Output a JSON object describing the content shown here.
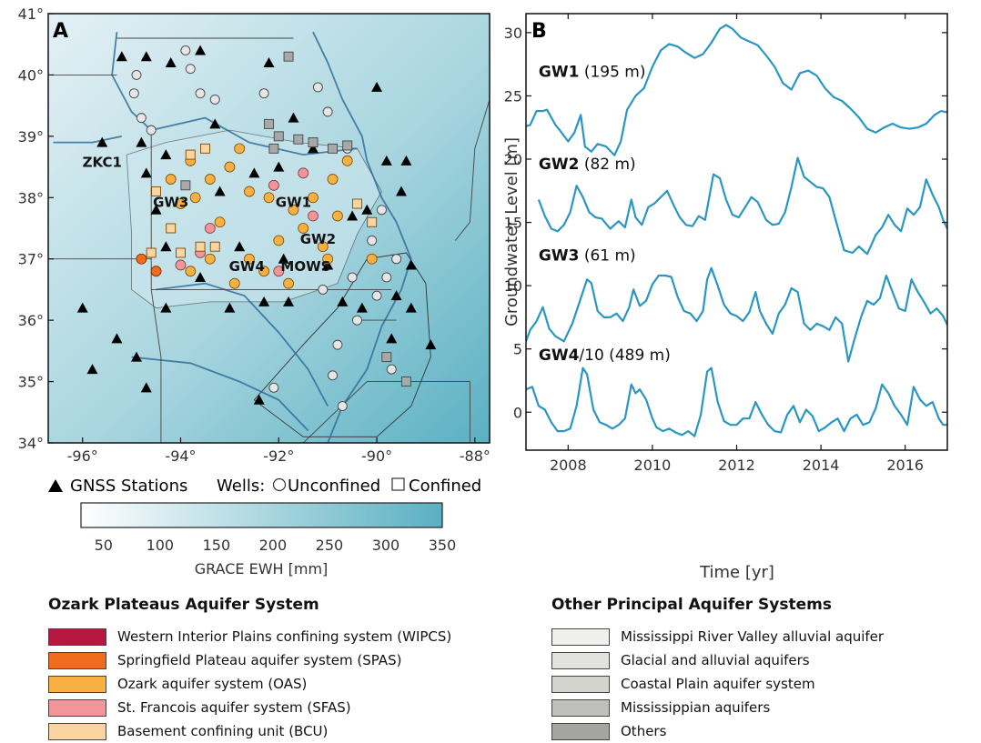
{
  "panel_a": {
    "label": "A",
    "lon_ticks": [
      "-96°",
      "-94°",
      "-92°",
      "-90°",
      "-88°"
    ],
    "lat_ticks": [
      "41°",
      "40°",
      "39°",
      "38°",
      "37°",
      "36°",
      "35°",
      "34°"
    ],
    "station_labels": [
      {
        "text": "ZKC1",
        "lon": -95.6,
        "lat": 38.5
      },
      {
        "text": "GW3",
        "lon": -94.2,
        "lat": 37.85
      },
      {
        "text": "GW1",
        "lon": -91.7,
        "lat": 37.85
      },
      {
        "text": "GW2",
        "lon": -91.2,
        "lat": 37.25
      },
      {
        "text": "GW4",
        "lon": -92.65,
        "lat": 36.8
      },
      {
        "text": "MOWS",
        "lon": -91.45,
        "lat": 36.8
      }
    ],
    "gnss_legend": "GNSS Stations",
    "wells_legend": "Wells:",
    "unconfined_label": "Unconfined",
    "confined_label": "Confined",
    "colorbar_label": "GRACE EWH [mm]",
    "colorbar_ticks": [
      "50",
      "100",
      "150",
      "200",
      "250",
      "300",
      "350"
    ],
    "colors": {
      "ocean_low": "#e4f1f5",
      "ocean_high": "#5ab0c2",
      "wipcs": "#b5173f",
      "spas": "#f26b1d",
      "oas": "#f7b041",
      "sfas": "#f2959a",
      "bcu": "#fbd5a1",
      "unconfined_fill": "#e6e6e6",
      "confined_fill": "#a8a8a8"
    }
  },
  "ozark_legend": {
    "title": "Ozark Plateaus Aquifer System",
    "items": [
      {
        "label": "Western Interior Plains confining system (WIPCS)",
        "color": "#b5173f"
      },
      {
        "label": "Springfield Plateau aquifer system (SPAS)",
        "color": "#f26b1d"
      },
      {
        "label": "Ozark aquifer system (OAS)",
        "color": "#f7b041"
      },
      {
        "label": "St. Francois aquifer system (SFAS)",
        "color": "#f2959a"
      },
      {
        "label": "Basement confining unit (BCU)",
        "color": "#fbd5a1"
      }
    ]
  },
  "other_legend": {
    "title": "Other Principal Aquifer Systems",
    "items": [
      {
        "label": "Mississippi River Valley alluvial aquifer",
        "color": "#efefec"
      },
      {
        "label": "Glacial and alluvial aquifers",
        "color": "#e2e2df"
      },
      {
        "label": "Coastal Plain aquifer system",
        "color": "#d3d3d0"
      },
      {
        "label": "Mississippian aquifers",
        "color": "#bfbfbc"
      },
      {
        "label": "Others",
        "color": "#a4a4a1"
      }
    ]
  },
  "chart_data": {
    "type": "line",
    "panel_label": "B",
    "xlabel": "Time [yr]",
    "ylabel": "Groundwater Level [m]",
    "xlim": [
      2007.0,
      2017.0
    ],
    "ylim": [
      -3,
      31.5
    ],
    "xticks": [
      2008,
      2010,
      2012,
      2014,
      2016
    ],
    "yticks": [
      0,
      5,
      10,
      15,
      20,
      25,
      30
    ],
    "grid": false,
    "line_color": "#2a97c2",
    "series": [
      {
        "name": "GW1",
        "depth": "(195 m)",
        "label_x": 2007.3,
        "label_y": 26.5,
        "x": [
          2007.0,
          2007.1,
          2007.25,
          2007.4,
          2007.5,
          2007.7,
          2007.8,
          2008.0,
          2008.15,
          2008.3,
          2008.4,
          2008.55,
          2008.7,
          2008.9,
          2009.1,
          2009.25,
          2009.4,
          2009.6,
          2009.8,
          2010.0,
          2010.2,
          2010.4,
          2010.6,
          2010.8,
          2011.0,
          2011.2,
          2011.4,
          2011.6,
          2011.75,
          2011.9,
          2012.1,
          2012.3,
          2012.5,
          2012.7,
          2012.9,
          2013.1,
          2013.3,
          2013.5,
          2013.7,
          2013.9,
          2014.1,
          2014.3,
          2014.5,
          2014.7,
          2014.9,
          2015.1,
          2015.3,
          2015.5,
          2015.7,
          2015.9,
          2016.1,
          2016.3,
          2016.5,
          2016.7,
          2016.85,
          2017.0
        ],
        "y": [
          22.6,
          22.7,
          23.8,
          23.8,
          23.9,
          22.7,
          22.3,
          21.4,
          22.1,
          23.5,
          21.0,
          20.6,
          21.2,
          21.0,
          20.3,
          21.4,
          23.9,
          25.0,
          25.6,
          27.3,
          28.6,
          29.1,
          28.9,
          28.4,
          28.0,
          28.3,
          29.2,
          30.3,
          30.6,
          30.3,
          29.6,
          29.3,
          29.0,
          28.2,
          27.3,
          26.0,
          25.5,
          26.8,
          27.0,
          26.6,
          25.6,
          24.9,
          24.6,
          24.0,
          23.3,
          22.4,
          22.1,
          22.5,
          22.8,
          22.5,
          22.4,
          22.5,
          22.8,
          23.5,
          23.8,
          23.7
        ]
      },
      {
        "name": "GW2",
        "depth": "(82 m)",
        "label_x": 2007.3,
        "label_y": 19.2,
        "x": [
          2007.3,
          2007.45,
          2007.6,
          2007.75,
          2007.9,
          2008.05,
          2008.2,
          2008.35,
          2008.5,
          2008.65,
          2008.8,
          2009.0,
          2009.2,
          2009.35,
          2009.5,
          2009.6,
          2009.75,
          2009.9,
          2010.05,
          2010.2,
          2010.35,
          2010.5,
          2010.65,
          2010.8,
          2010.95,
          2011.1,
          2011.25,
          2011.45,
          2011.6,
          2011.75,
          2011.9,
          2012.05,
          2012.2,
          2012.35,
          2012.5,
          2012.7,
          2012.85,
          2013.0,
          2013.15,
          2013.3,
          2013.45,
          2013.6,
          2013.75,
          2013.9,
          2014.05,
          2014.2,
          2014.35,
          2014.55,
          2014.75,
          2014.9,
          2015.1,
          2015.3,
          2015.45,
          2015.6,
          2015.75,
          2015.9,
          2016.05,
          2016.2,
          2016.35,
          2016.5,
          2016.65,
          2016.8,
          2016.9,
          2017.0
        ],
        "y": [
          16.8,
          15.5,
          14.5,
          14.3,
          14.8,
          15.8,
          17.9,
          17.0,
          15.8,
          15.4,
          15.3,
          14.5,
          15.1,
          14.6,
          16.8,
          15.4,
          14.8,
          16.2,
          16.5,
          17.0,
          17.5,
          16.4,
          15.4,
          14.8,
          14.7,
          15.5,
          15.2,
          18.8,
          18.5,
          16.8,
          15.6,
          15.4,
          16.2,
          17.0,
          16.6,
          15.2,
          14.8,
          14.9,
          15.8,
          17.8,
          20.1,
          18.6,
          18.2,
          17.8,
          17.7,
          17.0,
          15.2,
          12.8,
          12.6,
          13.1,
          12.5,
          14.0,
          14.6,
          15.6,
          14.8,
          14.3,
          16.1,
          15.6,
          16.2,
          18.4,
          17.2,
          16.2,
          15.2,
          14.5
        ]
      },
      {
        "name": "GW3",
        "depth": "(61 m)",
        "label_x": 2007.3,
        "label_y": 12.0,
        "x": [
          2007.0,
          2007.1,
          2007.25,
          2007.4,
          2007.55,
          2007.7,
          2007.9,
          2008.1,
          2008.3,
          2008.45,
          2008.55,
          2008.7,
          2008.85,
          2009.0,
          2009.15,
          2009.3,
          2009.45,
          2009.55,
          2009.7,
          2009.85,
          2010.0,
          2010.15,
          2010.3,
          2010.45,
          2010.6,
          2010.75,
          2010.9,
          2011.05,
          2011.2,
          2011.3,
          2011.4,
          2011.55,
          2011.7,
          2011.85,
          2012.0,
          2012.15,
          2012.3,
          2012.45,
          2012.55,
          2012.7,
          2012.85,
          2013.0,
          2013.15,
          2013.3,
          2013.45,
          2013.6,
          2013.75,
          2013.9,
          2014.05,
          2014.2,
          2014.35,
          2014.5,
          2014.65,
          2014.8,
          2014.95,
          2015.1,
          2015.25,
          2015.4,
          2015.55,
          2015.7,
          2015.85,
          2016.0,
          2016.15,
          2016.3,
          2016.45,
          2016.6,
          2016.75,
          2016.9,
          2017.0
        ],
        "y": [
          5.6,
          6.5,
          7.2,
          8.3,
          6.6,
          6.0,
          5.6,
          7.0,
          9.0,
          10.5,
          10.2,
          8.0,
          7.5,
          7.5,
          7.8,
          7.2,
          8.3,
          9.7,
          8.4,
          8.8,
          10.1,
          10.8,
          10.8,
          10.7,
          9.1,
          8.0,
          7.8,
          7.2,
          8.0,
          10.5,
          11.4,
          10.0,
          8.5,
          7.8,
          7.6,
          7.2,
          7.9,
          9.5,
          8.0,
          7.0,
          6.2,
          7.8,
          8.5,
          9.8,
          9.5,
          7.0,
          6.5,
          7.0,
          6.8,
          6.5,
          7.5,
          7.0,
          4.0,
          5.8,
          7.5,
          8.8,
          8.5,
          9.0,
          10.8,
          9.5,
          8.2,
          8.0,
          10.5,
          9.5,
          8.7,
          7.8,
          8.2,
          7.6,
          6.9
        ]
      },
      {
        "name": "GW4",
        "name_suffix": "/10",
        "depth": "(489 m)",
        "label_x": 2007.3,
        "label_y": 4.1,
        "x": [
          2007.0,
          2007.15,
          2007.3,
          2007.45,
          2007.6,
          2007.75,
          2007.9,
          2008.05,
          2008.2,
          2008.35,
          2008.45,
          2008.6,
          2008.75,
          2008.9,
          2009.05,
          2009.2,
          2009.35,
          2009.5,
          2009.6,
          2009.7,
          2009.85,
          2010.0,
          2010.1,
          2010.25,
          2010.4,
          2010.55,
          2010.7,
          2010.85,
          2011.0,
          2011.15,
          2011.3,
          2011.4,
          2011.55,
          2011.7,
          2011.85,
          2012.0,
          2012.15,
          2012.3,
          2012.45,
          2012.6,
          2012.75,
          2012.9,
          2013.05,
          2013.2,
          2013.35,
          2013.5,
          2013.65,
          2013.8,
          2013.95,
          2014.1,
          2014.25,
          2014.4,
          2014.55,
          2014.7,
          2014.85,
          2015.0,
          2015.15,
          2015.3,
          2015.45,
          2015.6,
          2015.75,
          2015.9,
          2016.05,
          2016.2,
          2016.35,
          2016.5,
          2016.65,
          2016.8,
          2016.9,
          2017.0
        ],
        "y": [
          1.8,
          2.0,
          0.5,
          0.2,
          -0.8,
          -1.5,
          -1.5,
          -1.3,
          0.5,
          3.5,
          3.0,
          0.2,
          -0.8,
          -1.0,
          -1.3,
          -1.0,
          -0.5,
          2.2,
          1.5,
          1.8,
          1.0,
          -0.5,
          -1.2,
          -1.5,
          -1.3,
          -1.6,
          -1.8,
          -1.5,
          -1.9,
          -0.2,
          3.2,
          3.5,
          0.8,
          -0.7,
          -1.0,
          -1.0,
          -0.5,
          -0.5,
          0.8,
          -0.2,
          -1.0,
          -1.5,
          -1.6,
          -0.2,
          0.5,
          -0.8,
          0.2,
          -0.3,
          -1.5,
          -1.2,
          -0.8,
          -0.5,
          -1.5,
          -0.5,
          -0.2,
          -1.0,
          -0.8,
          0.3,
          2.2,
          1.5,
          0.5,
          -0.2,
          -1.0,
          2.0,
          1.0,
          0.5,
          0.8,
          -0.5,
          -1.0,
          -1.0
        ]
      }
    ]
  }
}
